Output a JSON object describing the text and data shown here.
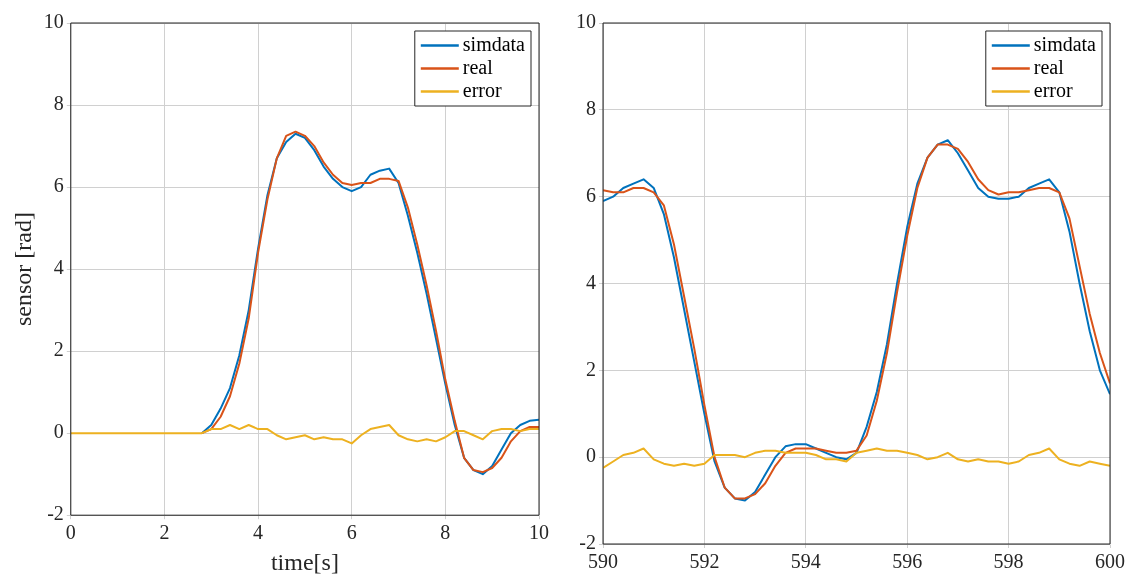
{
  "chart_data": [
    {
      "type": "line",
      "xlabel": "time[s]",
      "ylabel": "sensor [rad]",
      "xlim": [
        0,
        10
      ],
      "xticks": [
        0,
        2,
        4,
        6,
        8,
        10
      ],
      "ylim": [
        -2,
        10
      ],
      "yticks": [
        -2,
        0,
        2,
        4,
        6,
        8,
        10
      ],
      "grid": true,
      "legend": "top right",
      "marker": "none",
      "line_style": "solid",
      "x": [
        0,
        0.2,
        0.4,
        0.6,
        0.8,
        1,
        1.2,
        1.4,
        1.6,
        1.8,
        2,
        2.2,
        2.4,
        2.6,
        2.8,
        3,
        3.2,
        3.4,
        3.6,
        3.8,
        4,
        4.2,
        4.4,
        4.6,
        4.8,
        5,
        5.2,
        5.4,
        5.6,
        5.8,
        6,
        6.2,
        6.4,
        6.6,
        6.8,
        7,
        7.2,
        7.4,
        7.6,
        7.8,
        8,
        8.2,
        8.4,
        8.6,
        8.8,
        9,
        9.2,
        9.4,
        9.6,
        9.8,
        10
      ],
      "series": [
        {
          "name": "simdata",
          "color": "#0072bd",
          "values": [
            null,
            null,
            null,
            null,
            null,
            null,
            null,
            null,
            null,
            null,
            null,
            null,
            null,
            null,
            0,
            0.2,
            0.6,
            1.1,
            1.9,
            3.0,
            4.5,
            5.8,
            6.7,
            7.1,
            7.3,
            7.2,
            6.9,
            6.5,
            6.2,
            6.0,
            5.9,
            6.0,
            6.3,
            6.4,
            6.45,
            6.1,
            5.3,
            4.4,
            3.4,
            2.3,
            1.2,
            0.2,
            -0.6,
            -0.9,
            -1.0,
            -0.8,
            -0.4,
            0.0,
            0.2,
            0.3,
            0.33
          ]
        },
        {
          "name": "real",
          "color": "#d95319",
          "values": [
            null,
            null,
            null,
            null,
            null,
            null,
            null,
            null,
            null,
            null,
            null,
            null,
            null,
            null,
            0,
            0.1,
            0.4,
            0.9,
            1.7,
            2.8,
            4.4,
            5.7,
            6.7,
            7.25,
            7.35,
            7.25,
            7.0,
            6.6,
            6.3,
            6.1,
            6.05,
            6.1,
            6.1,
            6.2,
            6.2,
            6.15,
            5.5,
            4.6,
            3.6,
            2.5,
            1.3,
            0.3,
            -0.6,
            -0.9,
            -0.95,
            -0.85,
            -0.6,
            -0.2,
            0.05,
            0.15,
            0.15
          ]
        },
        {
          "name": "error",
          "color": "#edb120",
          "values": [
            0,
            0,
            0,
            0,
            0,
            0,
            0,
            0,
            0,
            0,
            0,
            0,
            0,
            0,
            0,
            0.1,
            0.1,
            0.2,
            0.1,
            0.2,
            0.1,
            0.1,
            -0.05,
            -0.15,
            -0.1,
            -0.05,
            -0.15,
            -0.1,
            -0.15,
            -0.15,
            -0.25,
            -0.05,
            0.1,
            0.15,
            0.2,
            -0.05,
            -0.15,
            -0.2,
            -0.15,
            -0.2,
            -0.1,
            0.05,
            0.05,
            -0.05,
            -0.15,
            0.05,
            0.1,
            0.1,
            0.05,
            0.1,
            0.1
          ]
        }
      ]
    },
    {
      "type": "line",
      "xlim": [
        590,
        600
      ],
      "xticks": [
        590,
        592,
        594,
        596,
        598,
        600
      ],
      "ylim": [
        -2,
        10
      ],
      "yticks": [
        -2,
        0,
        2,
        4,
        6,
        8,
        10
      ],
      "grid": true,
      "legend": "top right",
      "marker": "none",
      "line_style": "solid",
      "x": [
        590,
        590.2,
        590.4,
        590.6,
        590.8,
        591,
        591.2,
        591.4,
        591.6,
        591.8,
        592,
        592.2,
        592.4,
        592.6,
        592.8,
        593,
        593.2,
        593.4,
        593.6,
        593.8,
        594,
        594.2,
        594.4,
        594.6,
        594.8,
        595,
        595.2,
        595.4,
        595.6,
        595.8,
        596,
        596.2,
        596.4,
        596.6,
        596.8,
        597,
        597.2,
        597.4,
        597.6,
        597.8,
        598,
        598.2,
        598.4,
        598.6,
        598.8,
        599,
        599.2,
        599.4,
        599.6,
        599.8,
        600
      ],
      "series": [
        {
          "name": "simdata",
          "color": "#0072bd",
          "values": [
            5.9,
            6.0,
            6.2,
            6.3,
            6.4,
            6.2,
            5.6,
            4.6,
            3.4,
            2.2,
            1.0,
            -0.1,
            -0.7,
            -0.95,
            -1.0,
            -0.8,
            -0.4,
            0.0,
            0.25,
            0.3,
            0.3,
            0.2,
            0.1,
            0.0,
            -0.05,
            0.1,
            0.7,
            1.5,
            2.6,
            4.0,
            5.3,
            6.3,
            6.9,
            7.2,
            7.3,
            7.0,
            6.6,
            6.2,
            6.0,
            5.95,
            5.95,
            6.0,
            6.2,
            6.3,
            6.4,
            6.1,
            5.2,
            4.0,
            2.9,
            2.0,
            1.45
          ]
        },
        {
          "name": "real",
          "color": "#d95319",
          "values": [
            6.15,
            6.1,
            6.1,
            6.2,
            6.2,
            6.1,
            5.8,
            4.9,
            3.7,
            2.5,
            1.2,
            0.0,
            -0.7,
            -0.95,
            -0.95,
            -0.85,
            -0.6,
            -0.2,
            0.1,
            0.2,
            0.2,
            0.2,
            0.15,
            0.1,
            0.1,
            0.15,
            0.5,
            1.3,
            2.4,
            3.8,
            5.1,
            6.2,
            6.9,
            7.2,
            7.2,
            7.1,
            6.8,
            6.4,
            6.15,
            6.05,
            6.1,
            6.1,
            6.15,
            6.2,
            6.2,
            6.1,
            5.5,
            4.4,
            3.3,
            2.4,
            1.7
          ]
        },
        {
          "name": "error",
          "color": "#edb120",
          "values": [
            -0.25,
            -0.1,
            0.05,
            0.1,
            0.2,
            -0.05,
            -0.15,
            -0.2,
            -0.15,
            -0.2,
            -0.15,
            0.05,
            0.05,
            0.05,
            0.0,
            0.1,
            0.15,
            0.15,
            0.1,
            0.1,
            0.1,
            0.05,
            -0.05,
            -0.05,
            -0.1,
            0.1,
            0.15,
            0.2,
            0.15,
            0.15,
            0.1,
            0.05,
            -0.05,
            0.0,
            0.1,
            -0.05,
            -0.1,
            -0.05,
            -0.1,
            -0.1,
            -0.15,
            -0.1,
            0.05,
            0.1,
            0.2,
            -0.05,
            -0.15,
            -0.2,
            -0.1,
            -0.15,
            -0.2
          ]
        }
      ]
    }
  ]
}
